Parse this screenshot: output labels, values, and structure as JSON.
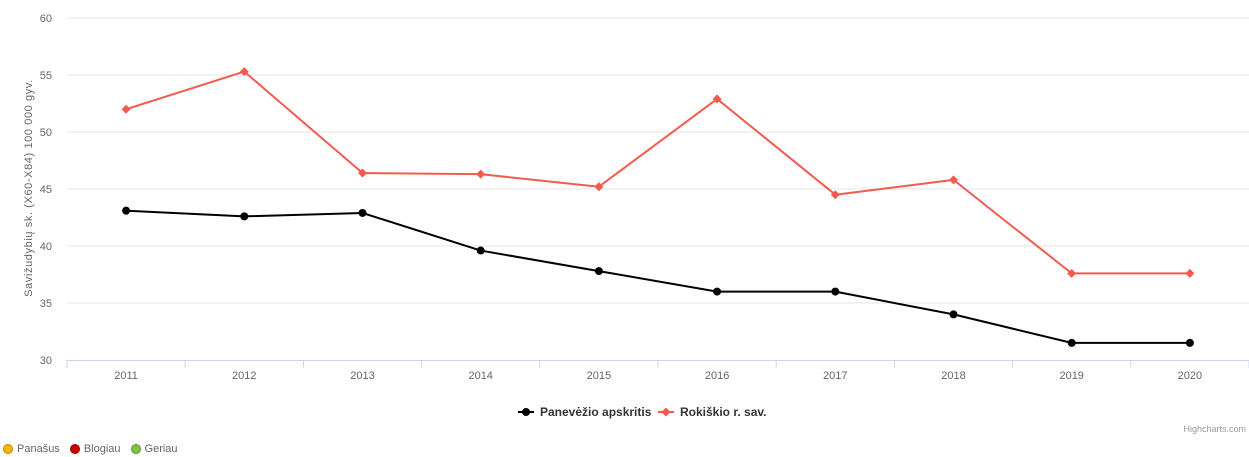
{
  "chart_data": {
    "type": "line",
    "ylabel": "Savižudybių sk. (X60-X84) 100 000 gyv.",
    "xlabel": "",
    "categories": [
      "2011",
      "2012",
      "2013",
      "2014",
      "2015",
      "2016",
      "2017",
      "2018",
      "2019",
      "2020"
    ],
    "ylim": [
      30,
      60
    ],
    "yticks": [
      30,
      35,
      40,
      45,
      50,
      55,
      60
    ],
    "grid": true,
    "legend_position": "bottom-center",
    "series": [
      {
        "name": "Panevėžio apskritis",
        "color": "#000000",
        "marker": "circle",
        "values": [
          43.1,
          42.6,
          42.9,
          39.6,
          37.8,
          36.0,
          36.0,
          34.0,
          31.5,
          31.5
        ]
      },
      {
        "name": "Rokiškio r. sav.",
        "color": "#f45b4f",
        "marker": "diamond",
        "values": [
          52.0,
          55.3,
          46.4,
          46.3,
          45.2,
          52.9,
          44.5,
          45.8,
          37.6,
          37.6
        ]
      }
    ],
    "credits": "Highcharts.com"
  },
  "status_legend": [
    {
      "label": "Panašus",
      "color": "#f5b800"
    },
    {
      "label": "Blogiau",
      "color": "#cc0000"
    },
    {
      "label": "Geriau",
      "color": "#7ec641"
    }
  ]
}
